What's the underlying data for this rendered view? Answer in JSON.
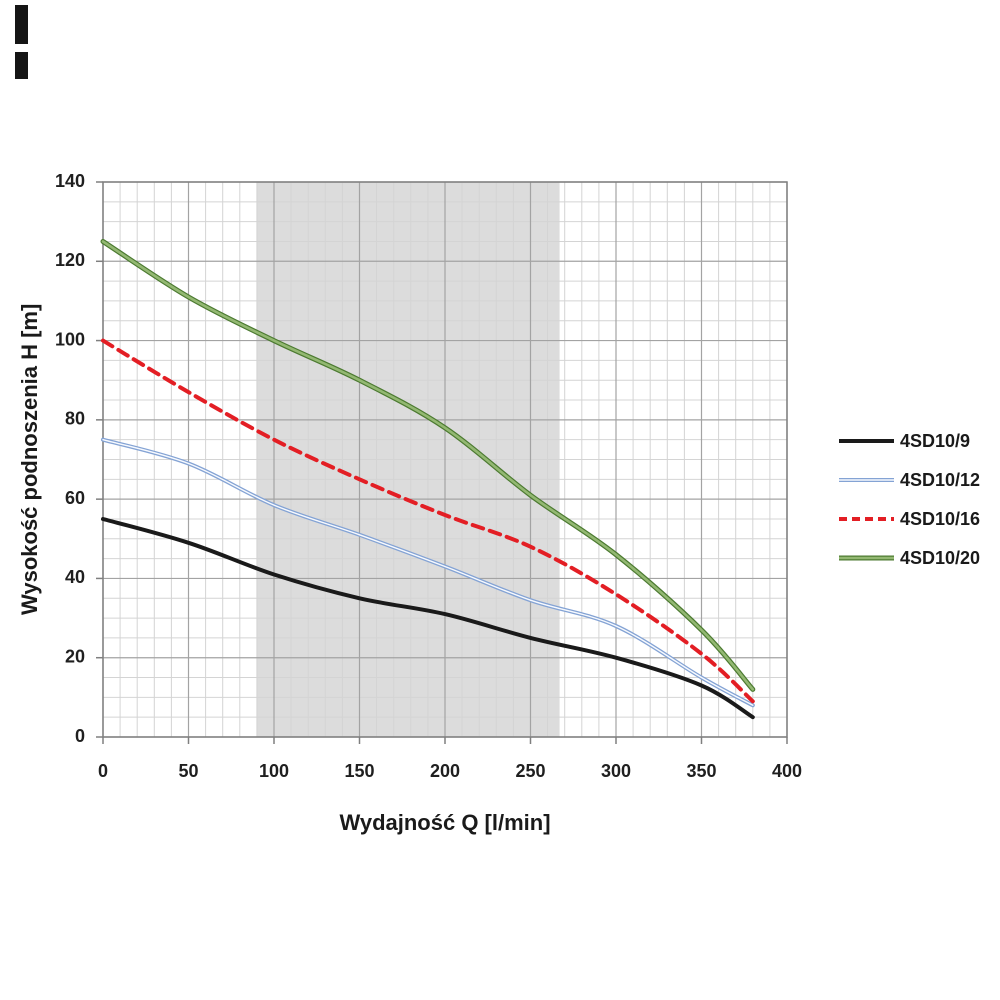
{
  "page": {
    "background": "#ffffff"
  },
  "chart_data": {
    "type": "line",
    "title": "",
    "xlabel": "Wydajność Q [l/min]",
    "ylabel": "Wysokość podnoszenia H [m]",
    "xlim": [
      0,
      400
    ],
    "ylim": [
      0,
      140
    ],
    "x_major_ticks": [
      0,
      50,
      100,
      150,
      200,
      250,
      300,
      350,
      400
    ],
    "y_major_ticks": [
      0,
      20,
      40,
      60,
      80,
      100,
      120,
      140
    ],
    "x_minor_step": 10,
    "y_minor_step": 5,
    "grid": "on",
    "legend_position": "right",
    "operating_band": {
      "x_start": 90,
      "x_end": 267,
      "color": "#dcdcdc"
    },
    "x": [
      0,
      50,
      100,
      150,
      200,
      250,
      300,
      350,
      380
    ],
    "series": [
      {
        "name": "4SD10/9",
        "style": "solid",
        "color": "#1a1a1a",
        "width": 4,
        "values": [
          55,
          49,
          41,
          35,
          31,
          25,
          20,
          13,
          5
        ]
      },
      {
        "name": "4SD10/12",
        "style": "outlined",
        "color": "#84a3d4",
        "inner": "#f7faff",
        "width": 4,
        "inner_width": 1.4,
        "values": [
          75,
          69,
          58.5,
          51,
          43,
          34.5,
          28,
          15,
          8
        ]
      },
      {
        "name": "4SD10/16",
        "style": "dashed",
        "color": "#e31e24",
        "width": 4,
        "dash": "11 7",
        "legend_dash": "8 5",
        "values": [
          100,
          87,
          75,
          65,
          56,
          48,
          36,
          21,
          9
        ]
      },
      {
        "name": "4SD10/20",
        "style": "outlined",
        "color": "#4c7a31",
        "inner": "#93b872",
        "width": 5,
        "inner_width": 2.6,
        "values": [
          125,
          111,
          100,
          90,
          78,
          61,
          46,
          27,
          12
        ]
      }
    ],
    "colors": {
      "minor_grid": "#d4d4d4",
      "major_grid": "#a3a3a3",
      "border": "#7f7f7f",
      "tick_text": "#1f1f1f"
    }
  }
}
